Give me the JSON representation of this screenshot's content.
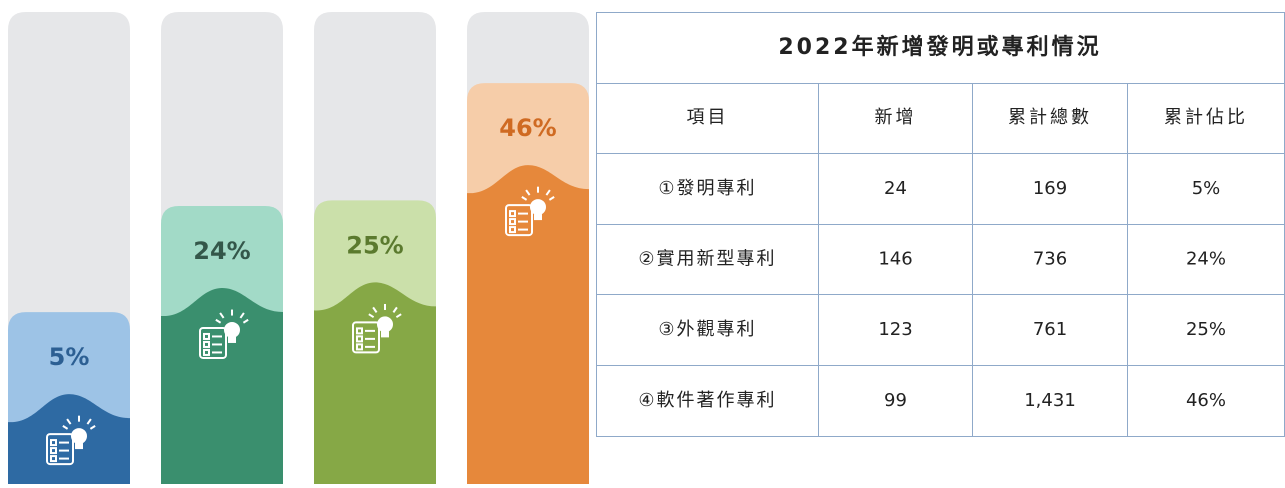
{
  "chart_data": {
    "type": "bar",
    "values": [
      5,
      24,
      25,
      46
    ],
    "value_labels": [
      "5%",
      "24%",
      "25%",
      "46%"
    ],
    "colors": [
      "#2e6aa3",
      "#3a8f6e",
      "#86a846",
      "#e6883b"
    ],
    "light_colors": [
      "#9dc3e6",
      "#a2dac7",
      "#cbe0aa",
      "#f6cda9"
    ],
    "label_colors": [
      "#2c5f93",
      "#34574a",
      "#5b7a2e",
      "#cf6a22"
    ]
  },
  "table": {
    "title": "2022年新增發明或專利情況",
    "columns": [
      "項目",
      "新增",
      "累計總數",
      "累計佔比"
    ],
    "rows": [
      [
        "①發明專利",
        "24",
        "169",
        "5%"
      ],
      [
        "②實用新型專利",
        "146",
        "736",
        "24%"
      ],
      [
        "③外觀專利",
        "123",
        "761",
        "25%"
      ],
      [
        "④軟件著作專利",
        "99",
        "1,431",
        "46%"
      ]
    ]
  }
}
